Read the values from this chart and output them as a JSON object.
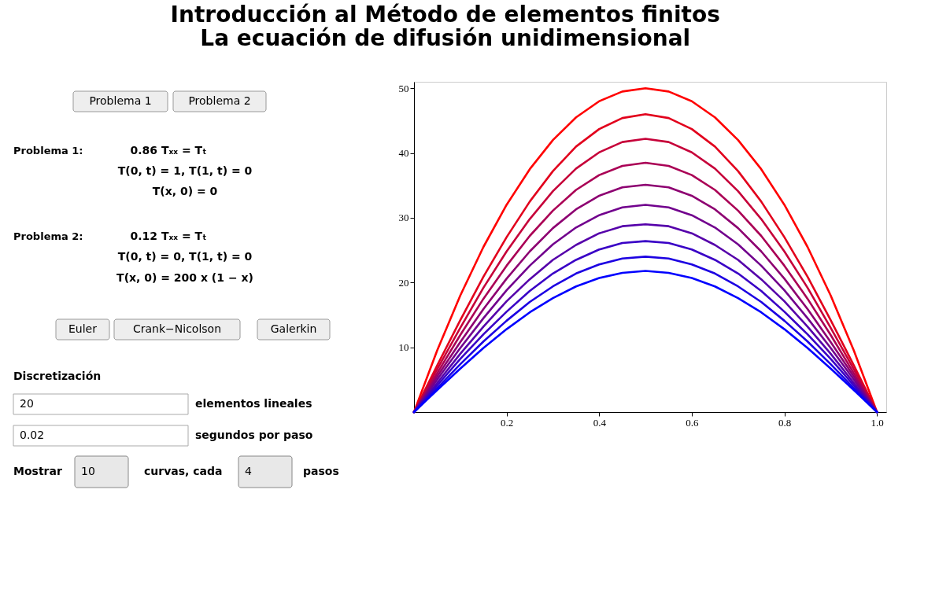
{
  "chart_data": {
    "type": "line",
    "title": "Introducción al Método de elementos finitos\nLa ecuación de difusión unidimensional",
    "annotations": [
      "Problema 1",
      "Problema 2",
      "Problema 1:",
      "0.86 Tₓₓ = Tₜ",
      "T(0, t) = 1, T(1, t) = 0",
      "T(x, 0) = 0",
      "Problema 2:",
      "0.12 Tₓₓ = Tₜ",
      "T(0, t) = 0, T(1, t) = 0",
      "T(x, 0) = 200 x (1 − x)",
      "Euler",
      "Crank−Nicolson",
      "Galerkin",
      "Discretización",
      "20",
      "elementos lineales",
      "0.02",
      "segundos por paso",
      "Mostrar",
      "10",
      "curvas, cada",
      "4",
      "pasos"
    ],
    "x": [
      0,
      0.05,
      0.1,
      0.15,
      0.2,
      0.25,
      0.3,
      0.35,
      0.4,
      0.45,
      0.5,
      0.55,
      0.6,
      0.65,
      0.7,
      0.75,
      0.8,
      0.85,
      0.9,
      0.95,
      1
    ],
    "series": [
      {
        "color": "#ff0000",
        "values": [
          0,
          9.5,
          18,
          25.5,
          32,
          37.5,
          42,
          45.5,
          48,
          49.5,
          50,
          49.5,
          48,
          45.5,
          42,
          37.5,
          32,
          25.5,
          18,
          9.5,
          0
        ]
      },
      {
        "color": "#e2001c",
        "values": [
          0,
          7.2,
          14.2,
          20.9,
          27.0,
          32.5,
          37.2,
          41.0,
          43.7,
          45.4,
          46,
          45.4,
          43.7,
          41.0,
          37.2,
          32.5,
          27.0,
          20.9,
          14.2,
          7.2,
          0
        ]
      },
      {
        "color": "#c60039",
        "values": [
          0,
          6.6,
          13.0,
          19.2,
          24.8,
          29.8,
          34.1,
          37.6,
          40.1,
          41.7,
          42.2,
          41.7,
          40.1,
          37.6,
          34.1,
          29.8,
          24.8,
          19.2,
          13.0,
          6.6,
          0
        ]
      },
      {
        "color": "#aa0055",
        "values": [
          0,
          6.0,
          11.9,
          17.5,
          22.6,
          27.2,
          31.1,
          34.3,
          36.6,
          38.0,
          38.5,
          38.0,
          36.6,
          34.3,
          31.1,
          27.2,
          22.6,
          17.5,
          11.9,
          6.0,
          0
        ]
      },
      {
        "color": "#8d0071",
        "values": [
          0,
          5.5,
          10.8,
          15.9,
          20.6,
          24.8,
          28.4,
          31.3,
          33.4,
          34.7,
          35.1,
          34.7,
          33.4,
          31.3,
          28.4,
          24.8,
          20.6,
          15.9,
          10.8,
          5.5,
          0
        ]
      },
      {
        "color": "#71008d",
        "values": [
          0,
          5.0,
          9.9,
          14.5,
          18.8,
          22.6,
          25.9,
          28.5,
          30.4,
          31.6,
          32,
          31.6,
          30.4,
          28.5,
          25.9,
          22.6,
          18.8,
          14.5,
          9.9,
          5.0,
          0
        ]
      },
      {
        "color": "#5500aa",
        "values": [
          0,
          4.5,
          9.0,
          13.2,
          17.1,
          20.5,
          23.5,
          25.8,
          27.6,
          28.7,
          29,
          28.7,
          27.6,
          25.8,
          23.5,
          20.5,
          17.1,
          13.2,
          9.0,
          4.5,
          0
        ]
      },
      {
        "color": "#3900c6",
        "values": [
          0,
          4.1,
          8.2,
          12.0,
          15.5,
          18.7,
          21.4,
          23.5,
          25.1,
          26.1,
          26.4,
          26.1,
          25.1,
          23.5,
          21.4,
          18.7,
          15.5,
          12.0,
          8.2,
          4.1,
          0
        ]
      },
      {
        "color": "#1c00e2",
        "values": [
          0,
          3.7,
          7.4,
          10.9,
          14.1,
          17.0,
          19.4,
          21.4,
          22.8,
          23.7,
          24,
          23.7,
          22.8,
          21.4,
          19.4,
          17.0,
          14.1,
          10.9,
          7.4,
          3.7,
          0
        ]
      },
      {
        "color": "#0000ff",
        "values": [
          0,
          3.4,
          6.7,
          9.9,
          12.8,
          15.4,
          17.6,
          19.4,
          20.7,
          21.5,
          21.8,
          21.5,
          20.7,
          19.4,
          17.6,
          15.4,
          12.8,
          9.9,
          6.7,
          3.4,
          0
        ]
      }
    ],
    "xlim": [
      0,
      1.02
    ],
    "ylim": [
      0,
      51
    ],
    "xticks": [
      0.2,
      0.4,
      0.6,
      0.8,
      {
        "value": 1,
        "label": "1.0"
      }
    ],
    "yticks": [
      10,
      20,
      30,
      40,
      50
    ],
    "grid": false,
    "legend": false
  }
}
